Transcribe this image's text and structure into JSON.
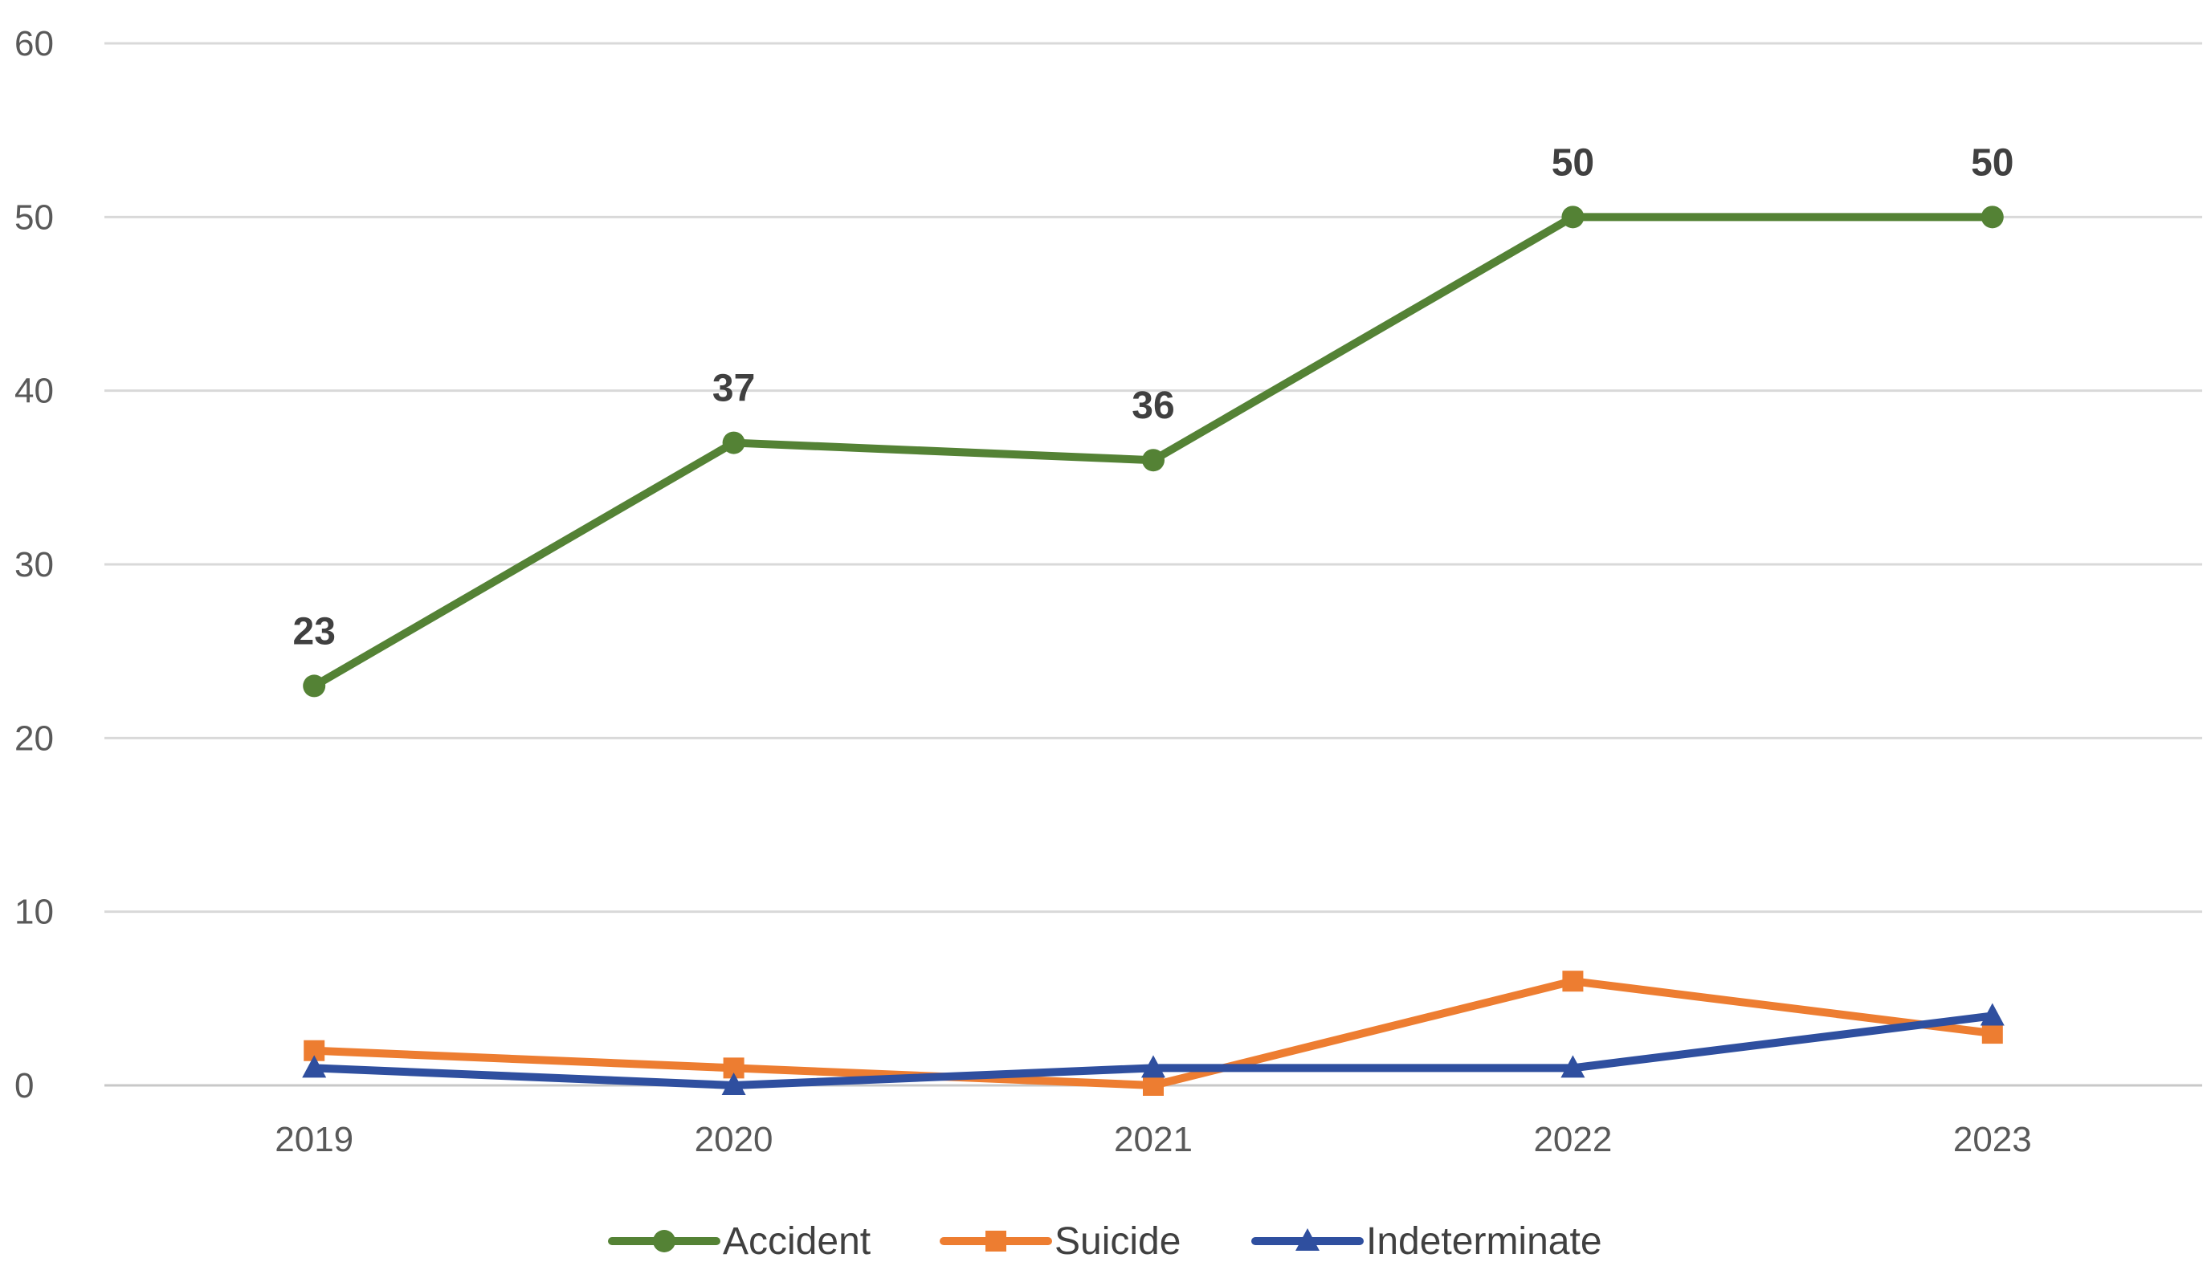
{
  "chart_data": {
    "type": "line",
    "title": "",
    "xlabel": "",
    "ylabel": "",
    "categories": [
      "2019",
      "2020",
      "2021",
      "2022",
      "2023"
    ],
    "ylim": [
      0,
      60
    ],
    "yticks": [
      0,
      10,
      20,
      30,
      40,
      50,
      60
    ],
    "grid": true,
    "legend_position": "bottom",
    "series": [
      {
        "name": "Accident",
        "values": [
          23,
          37,
          36,
          50,
          50
        ],
        "color": "#548235",
        "marker": "circle",
        "data_labels": [
          "23",
          "37",
          "36",
          "50",
          "50"
        ]
      },
      {
        "name": "Suicide",
        "values": [
          2,
          1,
          0,
          6,
          3
        ],
        "color": "#ED7D31",
        "marker": "square"
      },
      {
        "name": "Indeterminate",
        "values": [
          1,
          0,
          1,
          1,
          4
        ],
        "color": "#2F4F9F",
        "marker": "triangle"
      }
    ]
  }
}
